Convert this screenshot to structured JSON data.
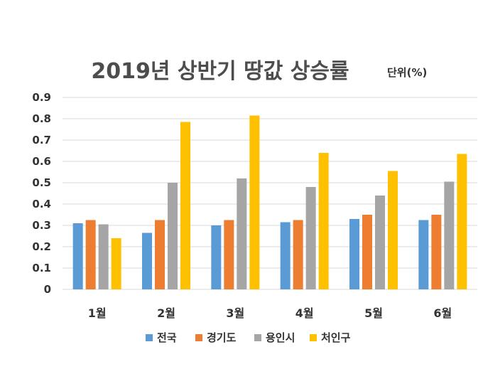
{
  "chart_data": {
    "type": "bar",
    "title": "2019년 상반기 땅값 상승률",
    "unit_label": "단위(%)",
    "categories": [
      "1월",
      "2월",
      "3월",
      "4월",
      "5월",
      "6월"
    ],
    "series": [
      {
        "name": "전국",
        "color": "#5b9bd5",
        "values": [
          0.31,
          0.265,
          0.3,
          0.315,
          0.33,
          0.325
        ]
      },
      {
        "name": "경기도",
        "color": "#ed7d31",
        "values": [
          0.325,
          0.325,
          0.325,
          0.325,
          0.35,
          0.35
        ]
      },
      {
        "name": "용인시",
        "color": "#a5a5a5",
        "values": [
          0.305,
          0.5,
          0.52,
          0.48,
          0.44,
          0.505
        ]
      },
      {
        "name": "처인구",
        "color": "#ffc000",
        "values": [
          0.24,
          0.785,
          0.815,
          0.64,
          0.555,
          0.635
        ]
      }
    ],
    "ylim": [
      0,
      0.9
    ],
    "yticks": [
      "0",
      "0.1",
      "0.2",
      "0.3",
      "0.4",
      "0.5",
      "0.6",
      "0.7",
      "0.8",
      "0.9"
    ],
    "grid": true,
    "legend": "bottom"
  }
}
